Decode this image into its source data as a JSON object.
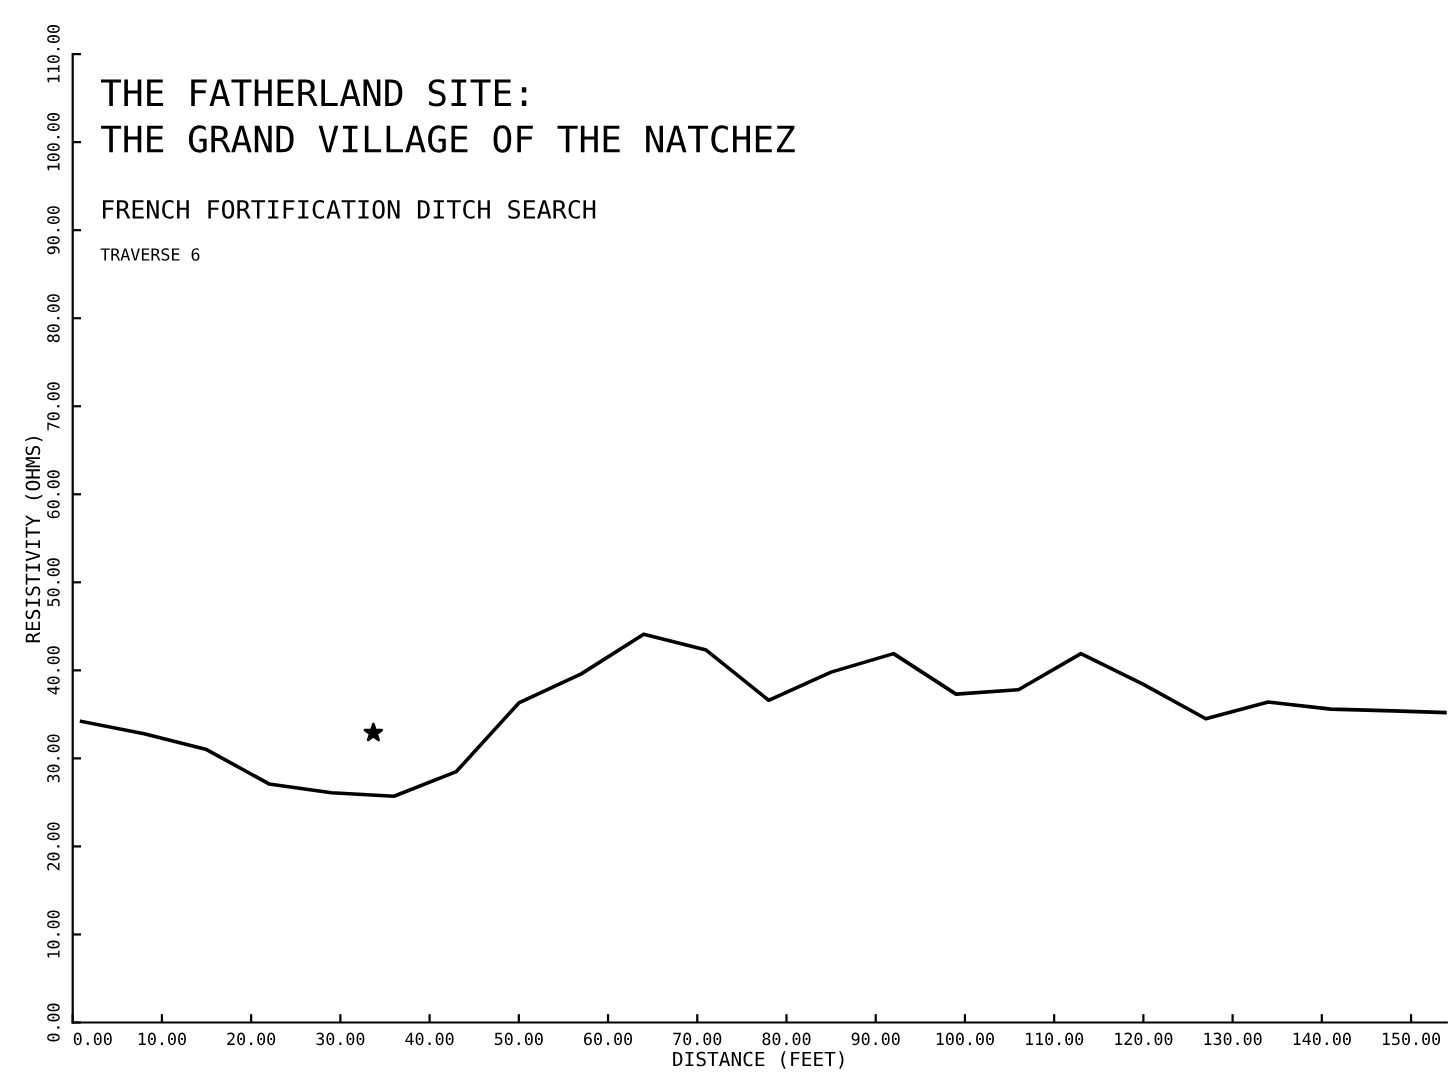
{
  "chart_data": {
    "type": "line",
    "title": "THE FATHERLAND SITE:\nTHE GRAND VILLAGE OF THE NATCHEZ",
    "subtitle": "FRENCH FORTIFICATION DITCH SEARCH",
    "annotations": [
      "TRAVERSE 6"
    ],
    "xlabel": "DISTANCE (FEET)",
    "ylabel": "RESISTIVITY (OHMS)",
    "series": [
      {
        "color": "#000000",
        "marker": "none",
        "x": [
          1,
          8,
          15,
          22,
          29,
          36,
          43,
          50,
          57,
          64,
          71,
          78,
          85,
          92,
          99,
          106,
          113,
          120,
          127,
          134,
          141,
          148,
          154
        ],
        "values": [
          34.2,
          32.8,
          31.0,
          27.1,
          26.1,
          25.7,
          28.5,
          36.3,
          39.6,
          44.1,
          42.3,
          36.6,
          39.8,
          41.9,
          37.3,
          37.8,
          41.9,
          38.4,
          34.5,
          36.4,
          35.6,
          35.4,
          35.2
        ]
      },
      {
        "type": "scatter",
        "color": "#000000",
        "marker": "star",
        "x": [
          33.7
        ],
        "values": [
          32.9
        ]
      }
    ],
    "xlim": [
      0,
      154
    ],
    "ylim": [
      0,
      110
    ],
    "xticks": [
      {
        "value": 0,
        "label": "0.00"
      },
      {
        "value": 10,
        "label": "10.00"
      },
      {
        "value": 20,
        "label": "20.00"
      },
      {
        "value": 30,
        "label": "30.00"
      },
      {
        "value": 40,
        "label": "40.00"
      },
      {
        "value": 50,
        "label": "50.00"
      },
      {
        "value": 60,
        "label": "60.00"
      },
      {
        "value": 70,
        "label": "70.00"
      },
      {
        "value": 80,
        "label": "80.00"
      },
      {
        "value": 90,
        "label": "90.00"
      },
      {
        "value": 100,
        "label": "100.00"
      },
      {
        "value": 110,
        "label": "110.00"
      },
      {
        "value": 120,
        "label": "120.00"
      },
      {
        "value": 130,
        "label": "130.00"
      },
      {
        "value": 140,
        "label": "140.00"
      },
      {
        "value": 150,
        "label": "150.00"
      }
    ],
    "yticks": [
      {
        "value": 0,
        "label": "0.00"
      },
      {
        "value": 10,
        "label": "10.00"
      },
      {
        "value": 20,
        "label": "20.00"
      },
      {
        "value": 30,
        "label": "30.00"
      },
      {
        "value": 40,
        "label": "40.00"
      },
      {
        "value": 50,
        "label": "50.00"
      },
      {
        "value": 60,
        "label": "60.00"
      },
      {
        "value": 70,
        "label": "70.00"
      },
      {
        "value": 80,
        "label": "80.00"
      },
      {
        "value": 90,
        "label": "90.00"
      },
      {
        "value": 100,
        "label": "100.00"
      },
      {
        "value": 110,
        "label": "110.00"
      }
    ],
    "grid": false,
    "legend": false
  }
}
